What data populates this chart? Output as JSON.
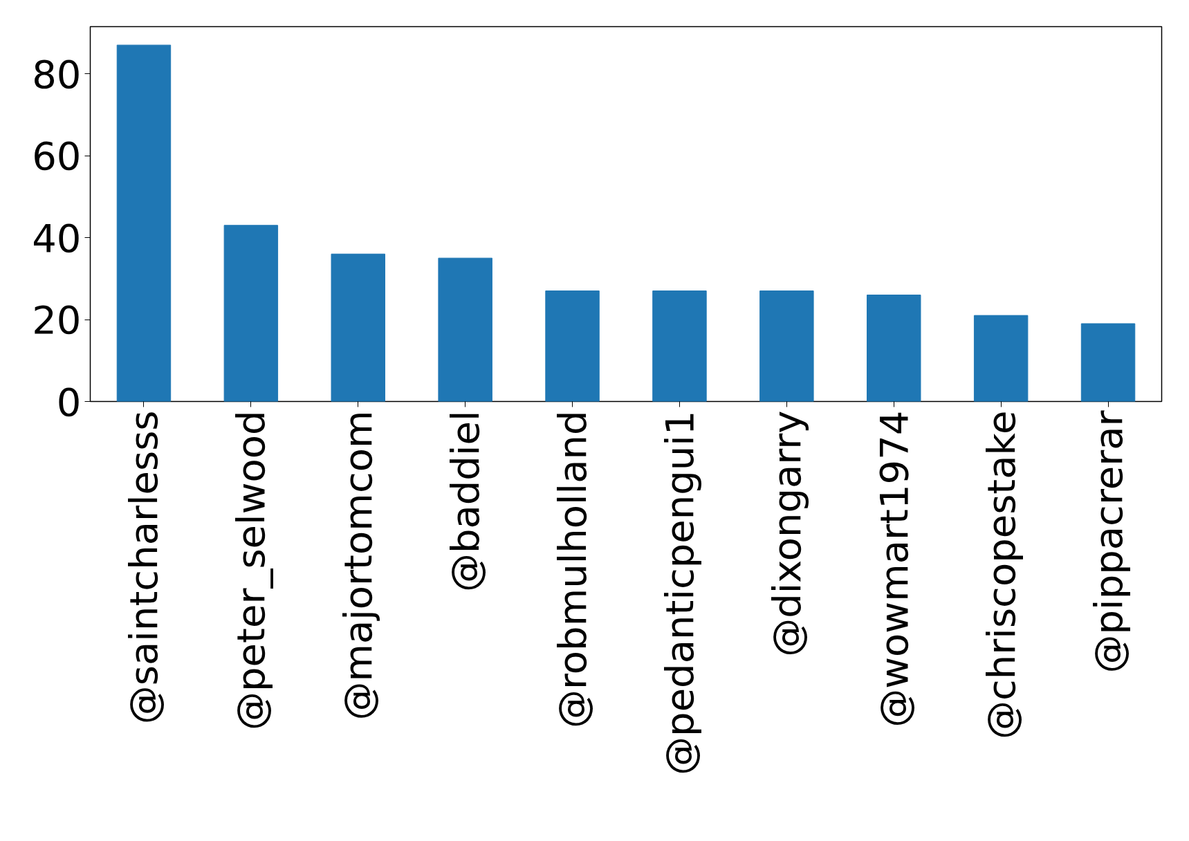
{
  "chart_data": {
    "type": "bar",
    "categories": [
      "@saintcharlesss",
      "@peter_selwood",
      "@majortomcom",
      "@baddiel",
      "@robmulholland",
      "@pedanticpengui1",
      "@dixongarry",
      "@wowmart1974",
      "@chriscopestake",
      "@pippacrerar"
    ],
    "values": [
      87,
      43,
      36,
      35,
      27,
      27,
      27,
      26,
      21,
      19
    ],
    "color": "#1f77b4",
    "ylim": [
      0,
      91.5
    ],
    "yticks": [
      0,
      20,
      40,
      60,
      80
    ]
  }
}
